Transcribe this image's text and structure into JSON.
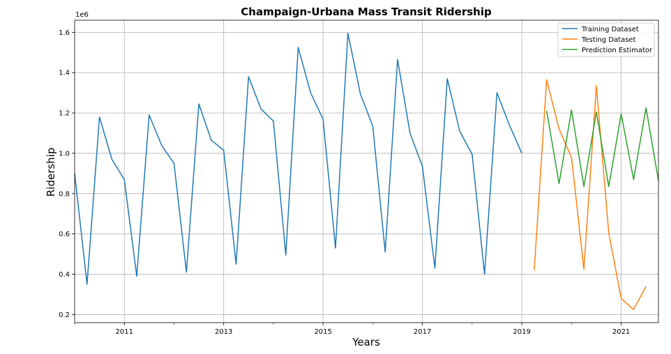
{
  "chart_data": {
    "type": "line",
    "title": "Champaign-Urbana Mass Transit Ridership",
    "xlabel": "Years",
    "ylabel": "Ridership",
    "y_offset_label": "1e6",
    "xlim": [
      "2010-01-01",
      "2021-10-01"
    ],
    "ylim": [
      0.16,
      1.66
    ],
    "x_ticks": [
      "2011",
      "2013",
      "2015",
      "2017",
      "2019",
      "2021"
    ],
    "y_ticks": [
      "0.2",
      "0.4",
      "0.6",
      "0.8",
      "1.0",
      "1.2",
      "1.4",
      "1.6"
    ],
    "grid": true,
    "legend_position": "top-right",
    "series": [
      {
        "name": "Training Dataset",
        "color": "#1f77b4",
        "points": [
          [
            "2010-01-01",
            0.9
          ],
          [
            "2010-04-01",
            0.35
          ],
          [
            "2010-07-01",
            1.18
          ],
          [
            "2010-10-01",
            0.97
          ],
          [
            "2011-01-01",
            0.87
          ],
          [
            "2011-04-01",
            0.39
          ],
          [
            "2011-07-01",
            1.19
          ],
          [
            "2011-10-01",
            1.04
          ],
          [
            "2012-01-01",
            0.95
          ],
          [
            "2012-04-01",
            0.41
          ],
          [
            "2012-07-01",
            1.245
          ],
          [
            "2012-10-01",
            1.065
          ],
          [
            "2013-01-01",
            1.015
          ],
          [
            "2013-04-01",
            0.45
          ],
          [
            "2013-07-01",
            1.38
          ],
          [
            "2013-10-01",
            1.22
          ],
          [
            "2014-01-01",
            1.16
          ],
          [
            "2014-04-01",
            0.495
          ],
          [
            "2014-07-01",
            1.525
          ],
          [
            "2014-10-01",
            1.3
          ],
          [
            "2015-01-01",
            1.17
          ],
          [
            "2015-04-01",
            0.53
          ],
          [
            "2015-07-01",
            1.595
          ],
          [
            "2015-10-01",
            1.295
          ],
          [
            "2016-01-01",
            1.135
          ],
          [
            "2016-04-01",
            0.51
          ],
          [
            "2016-07-01",
            1.465
          ],
          [
            "2016-10-01",
            1.1
          ],
          [
            "2017-01-01",
            0.935
          ],
          [
            "2017-04-01",
            0.43
          ],
          [
            "2017-07-01",
            1.37
          ],
          [
            "2017-10-01",
            1.11
          ],
          [
            "2018-01-01",
            0.995
          ],
          [
            "2018-04-01",
            0.4
          ],
          [
            "2018-07-01",
            1.3
          ],
          [
            "2018-10-01",
            1.14
          ],
          [
            "2019-01-01",
            1.0
          ]
        ]
      },
      {
        "name": "Testing Dataset",
        "color": "#ff7f0e",
        "points": [
          [
            "2019-04-01",
            0.42
          ],
          [
            "2019-07-01",
            1.365
          ],
          [
            "2019-10-01",
            1.12
          ],
          [
            "2020-01-01",
            0.98
          ],
          [
            "2020-04-01",
            0.425
          ],
          [
            "2020-07-01",
            1.335
          ],
          [
            "2020-10-01",
            0.605
          ],
          [
            "2021-01-01",
            0.28
          ],
          [
            "2021-04-01",
            0.225
          ],
          [
            "2021-07-01",
            0.34
          ]
        ]
      },
      {
        "name": "Prediction Estimator",
        "color": "#2ca02c",
        "points": [
          [
            "2019-07-01",
            1.21
          ],
          [
            "2019-10-01",
            0.85
          ],
          [
            "2020-01-01",
            1.215
          ],
          [
            "2020-04-01",
            0.835
          ],
          [
            "2020-07-01",
            1.205
          ],
          [
            "2020-10-01",
            0.835
          ],
          [
            "2021-01-01",
            1.195
          ],
          [
            "2021-04-01",
            0.87
          ],
          [
            "2021-07-01",
            1.225
          ],
          [
            "2021-10-01",
            0.865
          ]
        ]
      }
    ]
  }
}
